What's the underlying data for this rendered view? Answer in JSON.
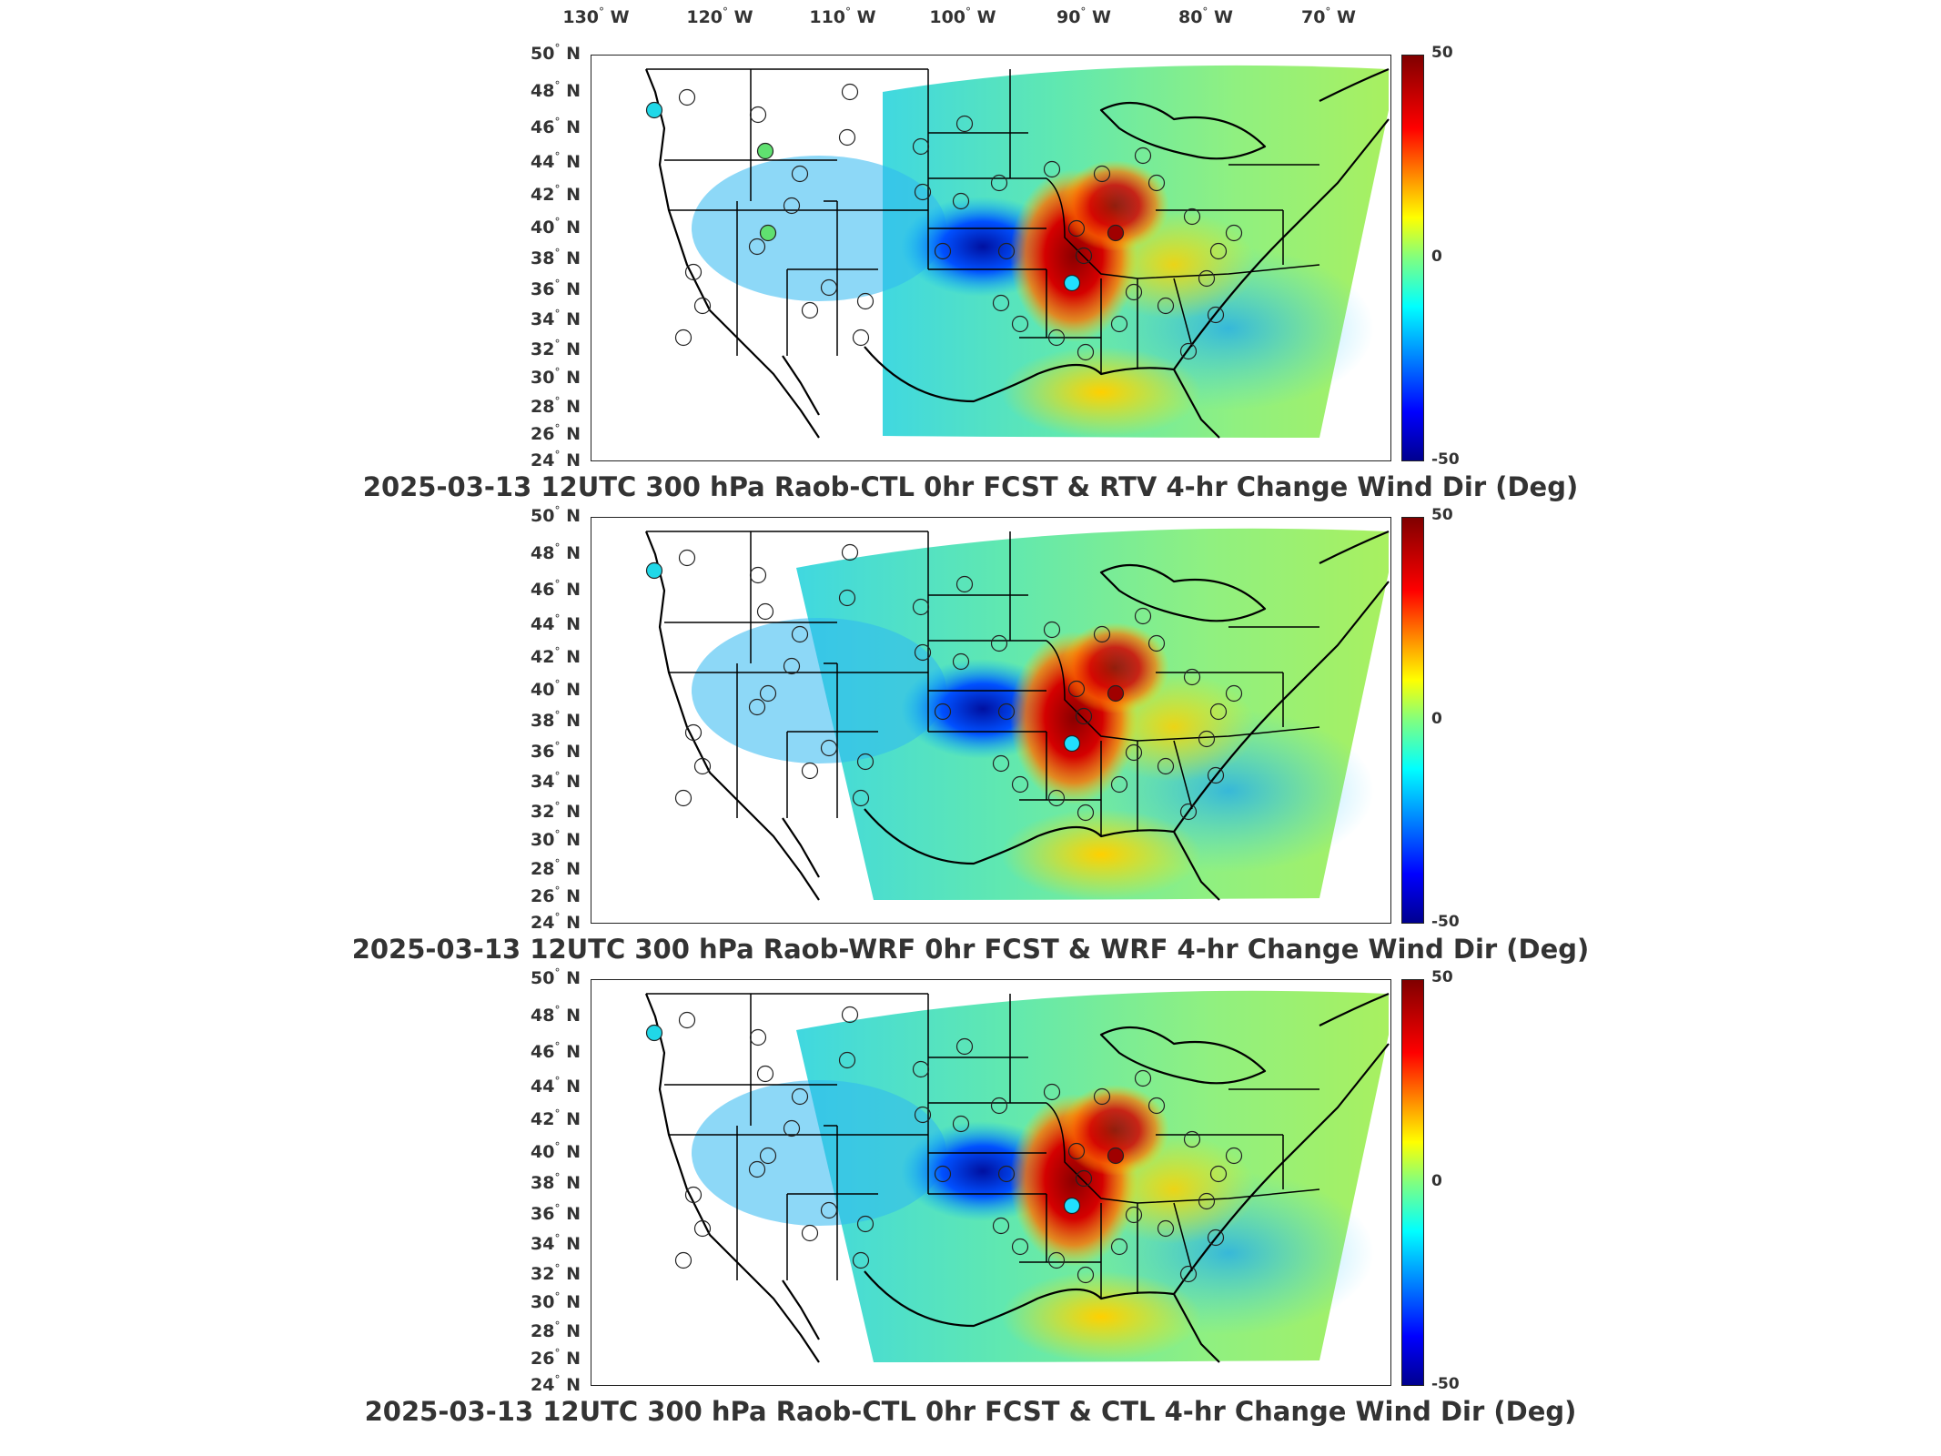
{
  "longitude_labels": [
    "130",
    "120",
    "110",
    "100",
    "90",
    "80",
    "70"
  ],
  "longitude_hemisphere": "W",
  "latitude_labels": [
    "50",
    "48",
    "46",
    "44",
    "42",
    "40",
    "38",
    "36",
    "34",
    "32",
    "30",
    "28",
    "26",
    "24"
  ],
  "latitude_hemisphere": "N",
  "degree_symbol": "°",
  "colorbar": {
    "max_label": "50",
    "mid_label": "0",
    "min_label": "-50",
    "colormap": [
      "#800000",
      "#ff0000",
      "#ffa500",
      "#ffff00",
      "#80ff80",
      "#00ffff",
      "#0080ff",
      "#0000ff",
      "#00008f"
    ]
  },
  "panels": [
    {
      "title": "2025-03-13 12UTC 300 hPa Raob-CTL 0hr FCST & RTV 4-hr Change Wind Dir (Deg)"
    },
    {
      "title": "2025-03-13 12UTC 300 hPa Raob-WRF 0hr FCST & WRF 4-hr Change Wind Dir (Deg)"
    },
    {
      "title": "2025-03-13 12UTC 300 hPa Raob-CTL 0hr FCST & CTL 4-hr Change Wind Dir (Deg)"
    }
  ]
}
